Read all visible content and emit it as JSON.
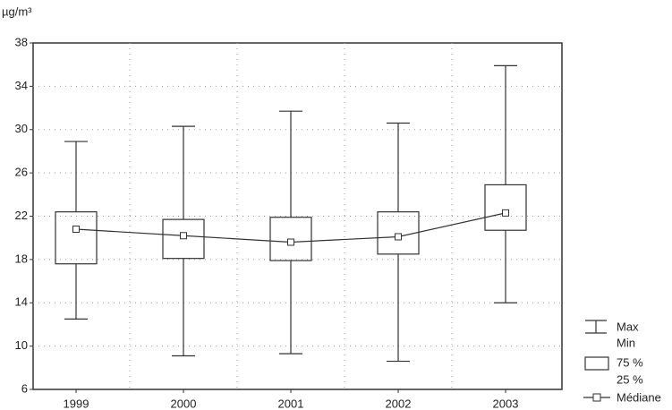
{
  "chart_data": {
    "type": "box",
    "y_label": "µg/m³",
    "categories": [
      "1999",
      "2000",
      "2001",
      "2002",
      "2003"
    ],
    "max": [
      28.9,
      30.3,
      31.7,
      30.6,
      35.9
    ],
    "min": [
      12.5,
      9.1,
      9.3,
      8.6,
      14.0
    ],
    "q3": [
      22.4,
      21.7,
      21.9,
      22.4,
      24.9
    ],
    "q1": [
      17.6,
      18.1,
      17.9,
      18.5,
      20.7
    ],
    "median": [
      20.8,
      20.2,
      19.6,
      20.1,
      22.3
    ],
    "legend_labels": {
      "max": "Max",
      "min": "Min",
      "q3": "75 %",
      "q1": "25 %",
      "median": "Médiane"
    },
    "ylim": [
      6,
      38
    ],
    "yticks": [
      6,
      10,
      14,
      18,
      22,
      26,
      30,
      34,
      38
    ],
    "grid": true
  }
}
